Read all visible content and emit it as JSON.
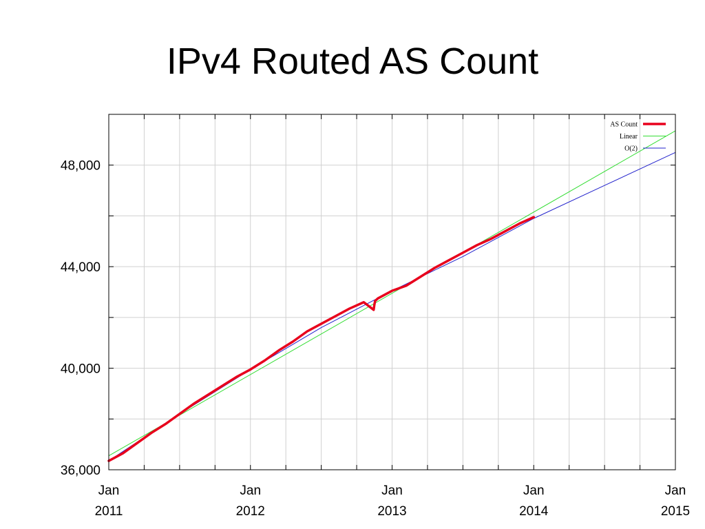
{
  "chart_data": {
    "type": "line",
    "title": "IPv4 Routed AS Count",
    "x_tick_labels": [
      {
        "x": 2011,
        "line1": "Jan",
        "line2": "2011"
      },
      {
        "x": 2012,
        "line1": "Jan",
        "line2": "2012"
      },
      {
        "x": 2013,
        "line1": "Jan",
        "line2": "2013"
      },
      {
        "x": 2014,
        "line1": "Jan",
        "line2": "2014"
      },
      {
        "x": 2015,
        "line1": "Jan",
        "line2": "2015"
      }
    ],
    "y_tick_labels": [
      {
        "y": 36000,
        "label": "36,000"
      },
      {
        "y": 40000,
        "label": "40,000"
      },
      {
        "y": 44000,
        "label": "44,000"
      },
      {
        "y": 48000,
        "label": "48,000"
      }
    ],
    "xlim": [
      2011,
      2015
    ],
    "ylim": [
      36000,
      50000
    ],
    "grid": true,
    "legend_position": "top-right",
    "series": [
      {
        "name": "AS Count",
        "color": "#e8001c",
        "x": [
          2011.0,
          2011.1,
          2011.2,
          2011.3,
          2011.4,
          2011.5,
          2011.6,
          2011.7,
          2011.8,
          2011.9,
          2012.0,
          2012.1,
          2012.2,
          2012.3,
          2012.4,
          2012.5,
          2012.6,
          2012.7,
          2012.8,
          2012.87,
          2012.875,
          2012.88,
          2012.9,
          2013.0,
          2013.1,
          2013.2,
          2013.3,
          2013.4,
          2013.5,
          2013.6,
          2013.7,
          2013.8,
          2013.9,
          2014.0
        ],
        "y": [
          36350,
          36650,
          37050,
          37450,
          37800,
          38200,
          38600,
          38950,
          39300,
          39650,
          39950,
          40300,
          40700,
          41050,
          41450,
          41750,
          42050,
          42350,
          42600,
          42300,
          42500,
          42650,
          42750,
          43050,
          43250,
          43600,
          43950,
          44250,
          44550,
          44850,
          45100,
          45400,
          45700,
          45950
        ]
      },
      {
        "name": "Linear",
        "color": "#33dd33",
        "x": [
          2011,
          2015
        ],
        "y": [
          36550,
          49350
        ]
      },
      {
        "name": "O(2)",
        "color": "#2222cc",
        "x": [
          2011.0,
          2011.5,
          2012.0,
          2012.5,
          2013.0,
          2013.5,
          2014.0,
          2014.5,
          2015.0
        ],
        "y": [
          36350,
          38200,
          39950,
          41600,
          43050,
          44400,
          45900,
          47200,
          48500
        ]
      }
    ]
  }
}
